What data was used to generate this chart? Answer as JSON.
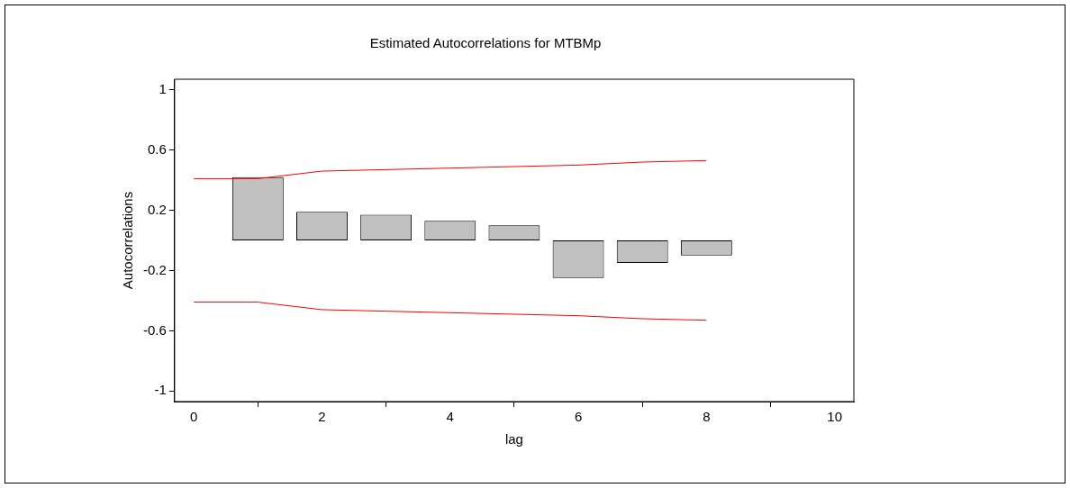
{
  "chart_data": {
    "type": "bar",
    "title": "Estimated Autocorrelations for MTBMp",
    "xlabel": "lag",
    "ylabel": "Autocorrelations",
    "series": [
      {
        "color": "#c0c0c0",
        "x": [
          1,
          2,
          3,
          4,
          5,
          6,
          7,
          8
        ],
        "values": [
          0.42,
          0.19,
          0.17,
          0.13,
          0.1,
          -0.25,
          -0.15,
          -0.1
        ]
      },
      {
        "type": "line",
        "color": "#ff0000",
        "x": [
          0,
          1,
          2,
          3,
          4,
          5,
          6,
          7,
          8
        ],
        "values": [
          0.41,
          0.41,
          0.46,
          0.47,
          0.48,
          0.49,
          0.5,
          0.52,
          0.53
        ]
      },
      {
        "type": "line",
        "color": "#ff0000",
        "x": [
          0,
          1,
          2,
          3,
          4,
          5,
          6,
          7,
          8
        ],
        "values": [
          -0.41,
          -0.41,
          -0.46,
          -0.47,
          -0.48,
          -0.49,
          -0.5,
          -0.52,
          -0.53
        ]
      }
    ],
    "xlim": [
      -0.3,
      10.3
    ],
    "xticks": [
      0,
      2,
      4,
      6,
      8,
      10
    ],
    "ylim": [
      -1.07,
      1.07
    ],
    "yticks": [
      -1,
      -0.6,
      -0.2,
      0.2,
      0.6,
      1
    ],
    "grid": false,
    "legend": false,
    "marker": "none",
    "line_style": "solid"
  }
}
